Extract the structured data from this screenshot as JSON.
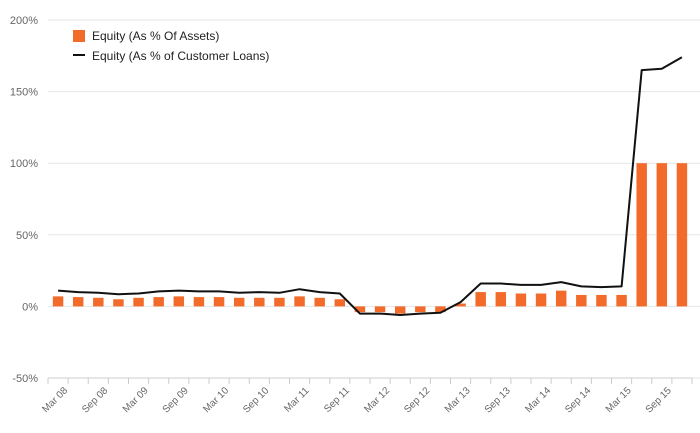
{
  "chart_data": {
    "type": "bar+line",
    "title": "",
    "xlabel": "",
    "ylabel": "",
    "ylim": [
      -50,
      200
    ],
    "y_ticks": [
      {
        "value": -50,
        "label": "-50%"
      },
      {
        "value": 0,
        "label": "0%"
      },
      {
        "value": 50,
        "label": "50%"
      },
      {
        "value": 100,
        "label": "100%"
      },
      {
        "value": 150,
        "label": "150%"
      },
      {
        "value": 200,
        "label": "200%"
      }
    ],
    "grid": true,
    "legend_position": "top-left",
    "categories": [
      "Mar 08",
      "Jun 08",
      "Sep 08",
      "Dec 08",
      "Mar 09",
      "Jun 09",
      "Sep 09",
      "Dec 09",
      "Mar 10",
      "Jun 10",
      "Sep 10",
      "Dec 10",
      "Mar 11",
      "Jun 11",
      "Sep 11",
      "Dec 11",
      "Mar 12",
      "Jun 12",
      "Sep 12",
      "Dec 12",
      "Mar 13",
      "Jun 13",
      "Sep 13",
      "Dec 13",
      "Mar 14",
      "Jun 14",
      "Sep 14",
      "Dec 14",
      "Mar 15",
      "Jun 15",
      "Sep 15",
      "Dec 15"
    ],
    "x_tick_labels": [
      "Mar 08",
      "Sep 08",
      "Mar 09",
      "Sep 09",
      "Mar 10",
      "Sep 10",
      "Mar 11",
      "Sep 11",
      "Mar 12",
      "Sep 12",
      "Mar 13",
      "Sep 13",
      "Mar 14",
      "Sep 14",
      "Mar 15",
      "Sep 15"
    ],
    "series": [
      {
        "name": "Equity (As % Of Assets)",
        "type": "bar",
        "color": "#f26b2b",
        "values": [
          7,
          6.5,
          6,
          5,
          6,
          6.5,
          7,
          6.5,
          6.5,
          6,
          6,
          6,
          7,
          6,
          5,
          -4,
          -4,
          -5,
          -4,
          -4,
          2,
          10,
          10,
          9,
          9,
          11,
          8,
          8,
          8,
          100,
          100,
          100
        ]
      },
      {
        "name": "Equity (As % of Customer Loans)",
        "type": "line",
        "color": "#111111",
        "values": [
          11,
          10,
          9.5,
          8.5,
          9,
          10.5,
          11,
          10.5,
          10.5,
          9.5,
          10,
          9.5,
          12,
          10,
          9,
          -5,
          -5,
          -6,
          -5,
          -4.5,
          3,
          16,
          16,
          15,
          15,
          17,
          14,
          13.5,
          14,
          165,
          166,
          174
        ]
      }
    ]
  }
}
